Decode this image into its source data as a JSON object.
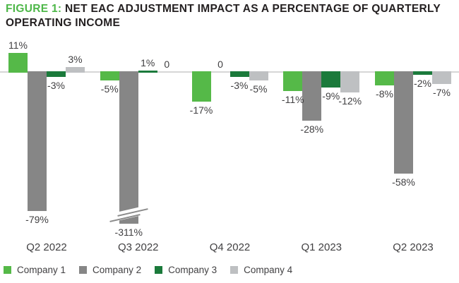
{
  "header": {
    "figure_label": "FIGURE 1:",
    "title_line1": "NET EAC ADJUSTMENT IMPACT AS A PERCENTAGE OF QUARTERLY",
    "title_line2": "OPERATING INCOME"
  },
  "chart_data": {
    "type": "bar",
    "title": "FIGURE 1: NET EAC ADJUSTMENT IMPACT AS A PERCENTAGE OF QUARTERLY OPERATING INCOME",
    "categories": [
      "Q2 2022",
      "Q3 2022",
      "Q4 2022",
      "Q1 2023",
      "Q2 2023"
    ],
    "series": [
      {
        "name": "Company 1",
        "color": "#55b948",
        "values": [
          11,
          -5,
          -17,
          -11,
          -8
        ],
        "labels": [
          "11%",
          "-5%",
          "-17%",
          "-11%",
          "-8%"
        ]
      },
      {
        "name": "Company 2",
        "color": "#868686",
        "values": [
          -79,
          -311,
          0,
          -28,
          -58
        ],
        "labels": [
          "-79%",
          "-311%",
          "0",
          "-28%",
          "-58%"
        ]
      },
      {
        "name": "Company 3",
        "color": "#1b7a3b",
        "values": [
          -3,
          1,
          -3,
          -9,
          -2
        ],
        "labels": [
          "-3%",
          "1%",
          "-3%",
          "-9%",
          "-2%"
        ]
      },
      {
        "name": "Company 4",
        "color": "#bec0c2",
        "values": [
          3,
          0,
          -5,
          -12,
          -7
        ],
        "labels": [
          "3%",
          "0",
          "-5%",
          "-12%",
          "-7%"
        ]
      }
    ],
    "xlabel": "",
    "ylabel": "",
    "unit": "%",
    "grid": false,
    "legend_position": "bottom",
    "axis_break": {
      "series": "Company 2",
      "category": "Q3 2022",
      "note": "bar truncated with diagonal break marks; true value -311%"
    }
  }
}
